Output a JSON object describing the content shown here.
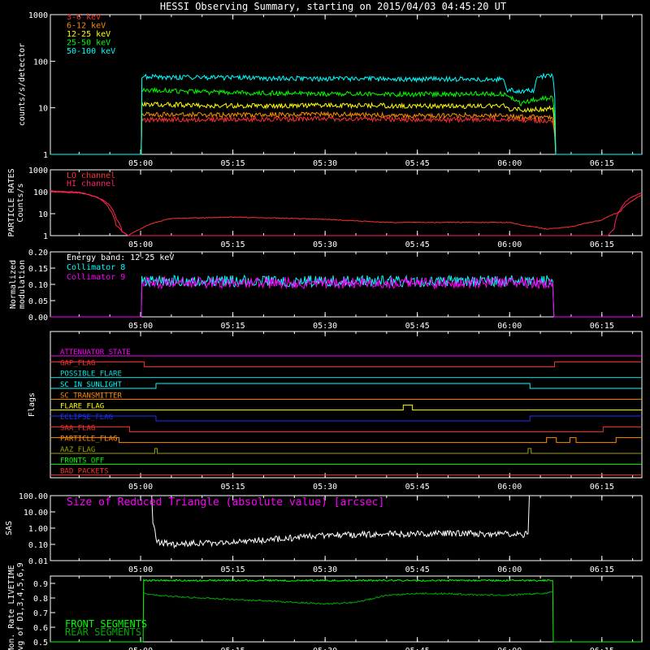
{
  "title": "HESSI Observing Summary, starting on 2015/04/03 04:45:20 UT",
  "time_axis": {
    "ticks": [
      "05:00",
      "05:15",
      "05:30",
      "05:45",
      "06:00",
      "06:15"
    ],
    "tick_minutes": [
      0,
      15,
      30,
      45,
      60,
      75
    ],
    "range_minutes": [
      -14.67,
      81.5
    ]
  },
  "colors": {
    "bg": "#000000",
    "axis": "#ffffff"
  },
  "chart_data": [
    {
      "id": "count-rates",
      "type": "line",
      "ylabel": "counts/s/detector",
      "yscale": "log",
      "ylim": [
        1,
        1000
      ],
      "yticks": [
        "1",
        "10",
        "100",
        "1000"
      ],
      "ytick_values": [
        1,
        10,
        100,
        1000
      ],
      "series": [
        {
          "name": "3-6 keV",
          "color": "#ff3030",
          "x": [
            -14.7,
            0.1,
            0.2,
            15,
            30,
            45,
            55,
            59,
            60,
            66,
            67,
            67.5,
            81.5
          ],
          "y": [
            1,
            1,
            5.5,
            5.6,
            5.8,
            5.5,
            5.6,
            5.5,
            5.5,
            5.3,
            5.2,
            1,
            1
          ]
        },
        {
          "name": "6-12 keV",
          "color": "#ff8c00",
          "x": [
            -14.7,
            0.1,
            0.2,
            15,
            30,
            45,
            55,
            59,
            60,
            66,
            67,
            67.5,
            81.5
          ],
          "y": [
            1,
            1,
            7.2,
            7,
            7.2,
            6.8,
            7,
            6.8,
            6.5,
            6.2,
            6,
            1,
            1
          ]
        },
        {
          "name": "12-25 keV",
          "color": "#ffff00",
          "x": [
            -14.7,
            0.1,
            0.2,
            15,
            30,
            45,
            55,
            59,
            60,
            62,
            66,
            67,
            67.5,
            81.5
          ],
          "y": [
            1,
            1,
            12,
            11,
            11.2,
            11,
            10.8,
            11,
            9.5,
            9,
            9.5,
            10,
            1,
            1
          ]
        },
        {
          "name": "25-50 keV",
          "color": "#00ff00",
          "x": [
            -14.7,
            0.1,
            0.2,
            15,
            30,
            45,
            55,
            59,
            60,
            62,
            64,
            66,
            67,
            67.5,
            81.5
          ],
          "y": [
            1,
            1,
            24,
            21,
            20,
            19.5,
            20,
            20,
            18,
            12,
            15,
            16,
            16,
            1,
            1
          ]
        },
        {
          "name": "50-100 keV",
          "color": "#00ffff",
          "x": [
            -14.7,
            0.1,
            0.2,
            15,
            30,
            45,
            55,
            59,
            59.5,
            62,
            64,
            64.5,
            66,
            67,
            67.5,
            81.5
          ],
          "y": [
            1,
            1,
            46,
            44,
            42,
            41,
            41,
            41,
            24,
            22,
            24,
            48,
            48,
            48,
            1,
            1
          ]
        }
      ]
    },
    {
      "id": "particle-rates",
      "type": "line",
      "ylabel": "PARTICLE RATES\nCounts/s",
      "yscale": "log",
      "ylim": [
        1,
        1000
      ],
      "yticks": [
        "1",
        "10",
        "100",
        "1000"
      ],
      "ytick_values": [
        1,
        10,
        100,
        1000
      ],
      "series": [
        {
          "name": "LO channel",
          "color": "#ff3030",
          "x": [
            -14.7,
            -10,
            -7,
            -5,
            -4,
            -3,
            -2,
            0,
            5,
            15,
            30,
            40,
            50,
            60,
            62,
            66,
            70,
            75,
            78,
            80,
            81.5
          ],
          "y": [
            100,
            90,
            55,
            15,
            3,
            1.5,
            1,
            2,
            6,
            7,
            5.5,
            4,
            4,
            4,
            3,
            2,
            2.5,
            5,
            12,
            40,
            70
          ]
        },
        {
          "name": "HI channel",
          "color": "#ff2060",
          "x": [
            -14.7,
            -10,
            -6,
            -4,
            -3,
            -2,
            66,
            75,
            76,
            77,
            78,
            80,
            81.5
          ],
          "y": [
            110,
            95,
            40,
            6,
            1.5,
            1,
            1,
            1,
            1,
            2,
            15,
            60,
            90
          ]
        }
      ]
    },
    {
      "id": "modulation",
      "type": "line",
      "ylabel": "Normalized\nmodulation",
      "yscale": "linear",
      "ylim": [
        0,
        0.2
      ],
      "yticks": [
        "0.00",
        "0.05",
        "0.10",
        "0.15",
        "0.20"
      ],
      "ytick_values": [
        0,
        0.05,
        0.1,
        0.15,
        0.2
      ],
      "annotation": "Energy band: 12-25 keV",
      "series": [
        {
          "name": "Collimator 8",
          "color": "#00ffff",
          "x": [
            -14.7,
            0.1,
            0.2,
            67,
            67.2,
            81.5
          ],
          "y": [
            0,
            0,
            0.11,
            0.11,
            0,
            0
          ]
        },
        {
          "name": "Collimator 9",
          "color": "#ff00ff",
          "x": [
            -14.7,
            0.1,
            0.2,
            67,
            67.2,
            81.5
          ],
          "y": [
            0,
            0,
            0.105,
            0.105,
            0,
            0
          ]
        }
      ]
    },
    {
      "id": "flags",
      "type": "step",
      "ylabel": "Flags",
      "rows": [
        {
          "name": "ATTENUATOR_STATE",
          "color": "#ff00ff",
          "steps": []
        },
        {
          "name": "GAP_FLAG",
          "color": "#ff3030",
          "steps": [
            [
              -14.7,
              1
            ],
            [
              0.6,
              0
            ],
            [
              67.3,
              1
            ]
          ]
        },
        {
          "name": "POSSIBLE_FLARE",
          "color": "#00e0e0",
          "steps": []
        },
        {
          "name": "SC_IN_SUNLIGHT",
          "color": "#00ffff",
          "steps": [
            [
              -14.7,
              0
            ],
            [
              2.5,
              1
            ],
            [
              63.3,
              0
            ]
          ]
        },
        {
          "name": "SC_TRANSMITTER",
          "color": "#ff8c00",
          "steps": []
        },
        {
          "name": "FLARE_FLAG",
          "color": "#ffff00",
          "steps": [
            [
              -14.7,
              0
            ],
            [
              42.7,
              1
            ],
            [
              44.2,
              0
            ]
          ]
        },
        {
          "name": "ECLIPSE_FLAG",
          "color": "#2030ff",
          "steps": [
            [
              -14.7,
              1
            ],
            [
              2.5,
              0
            ],
            [
              63.3,
              1
            ]
          ]
        },
        {
          "name": "SAA_FLAG",
          "color": "#ff3030",
          "steps": [
            [
              -14.7,
              1
            ],
            [
              -1.8,
              0
            ],
            [
              75.2,
              1
            ]
          ]
        },
        {
          "name": "PARTICLE_FLAG",
          "color": "#ff8c00",
          "steps": [
            [
              -14.7,
              1
            ],
            [
              -3.5,
              0
            ],
            [
              66,
              1
            ],
            [
              67.6,
              0
            ],
            [
              69.8,
              1
            ],
            [
              70.8,
              0
            ],
            [
              77.3,
              1
            ]
          ]
        },
        {
          "name": "AAZ_FLAG",
          "color": "#a0a000",
          "steps": [
            [
              -14.7,
              0
            ],
            [
              2.3,
              1
            ],
            [
              2.7,
              0
            ],
            [
              63.0,
              1
            ],
            [
              63.5,
              0
            ]
          ]
        },
        {
          "name": "FRONTS_OFF",
          "color": "#00ff00",
          "steps": []
        },
        {
          "name": "BAD_PACKETS",
          "color": "#ff3030",
          "steps": []
        }
      ]
    },
    {
      "id": "sas",
      "type": "line",
      "ylabel": "SAS",
      "yscale": "log",
      "ylim": [
        0.01,
        100
      ],
      "yticks": [
        "0.01",
        "0.10",
        "1.00",
        "10.00",
        "100.00"
      ],
      "ytick_values": [
        0.01,
        0.1,
        1,
        10,
        100
      ],
      "annotation": "Size of Reduced Triangle (absolute value) [arcsec]",
      "series": [
        {
          "name": "",
          "color": "#ffffff",
          "x": [
            1.8,
            2.0,
            2.5,
            5,
            10,
            15,
            20,
            25,
            30,
            35,
            40,
            45,
            50,
            55,
            60,
            62,
            63.0,
            63.2
          ],
          "y": [
            100,
            2,
            0.15,
            0.1,
            0.12,
            0.14,
            0.18,
            0.25,
            0.35,
            0.4,
            0.42,
            0.45,
            0.45,
            0.45,
            0.45,
            0.42,
            0.45,
            100
          ]
        }
      ]
    },
    {
      "id": "livetime",
      "type": "line",
      "ylabel": "Mon. Rate LIVETIME\navg of D1,3,4,5,6,9",
      "yscale": "linear",
      "ylim": [
        0.5,
        0.95
      ],
      "yticks": [
        "0.5",
        "0.6",
        "0.7",
        "0.8",
        "0.9"
      ],
      "ytick_values": [
        0.5,
        0.6,
        0.7,
        0.8,
        0.9
      ],
      "series": [
        {
          "name": "FRONT SEGMENTS",
          "color": "#00ff00",
          "x": [
            -14.7,
            0.4,
            0.5,
            67,
            67.1,
            81.5
          ],
          "y": [
            0.5,
            0.5,
            0.92,
            0.92,
            0.5,
            0.5
          ]
        },
        {
          "name": "REAR SEGMENTS",
          "color": "#00aa00",
          "x": [
            0.5,
            5,
            10,
            20,
            30,
            35,
            40,
            45,
            50,
            55,
            60,
            65,
            67
          ],
          "y": [
            0.83,
            0.81,
            0.8,
            0.78,
            0.76,
            0.77,
            0.82,
            0.83,
            0.83,
            0.82,
            0.82,
            0.83,
            0.84
          ]
        }
      ]
    }
  ]
}
